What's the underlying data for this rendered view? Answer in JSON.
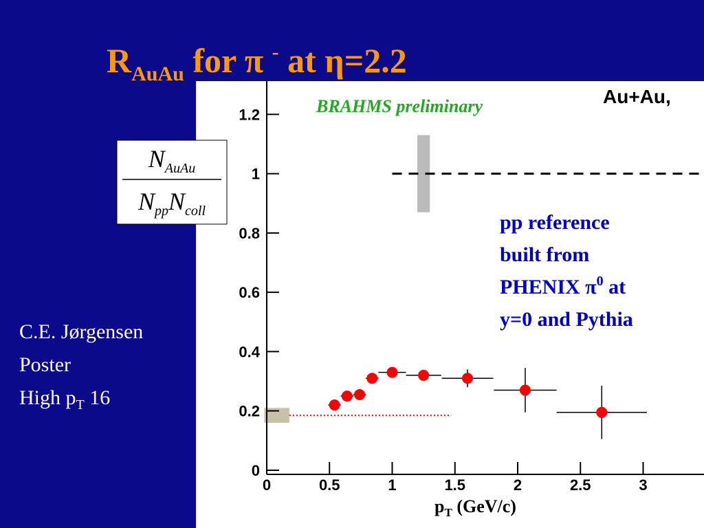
{
  "slide": {
    "title": {
      "main": "R",
      "sub": "AuAu",
      "mid": " for π ",
      "sup": "-",
      "end": " at η=2.2"
    },
    "formula": {
      "num": "N",
      "num_sub": "AuAu",
      "den1": "N",
      "den1_sub": "pp",
      "den2": "N",
      "den2_sub": "coll"
    },
    "notes": {
      "line1": "C.E. Jørgensen",
      "line2": "Poster",
      "line3_main": "High p",
      "line3_sub": "T",
      "line3_end": " 16"
    },
    "pp_text": {
      "line1": "pp reference",
      "line2": "built from",
      "line3_main": "PHENIX π",
      "line3_sup": "0",
      "line3_end": " at",
      "line4": "y=0 and Pythia"
    }
  },
  "chart_data": {
    "type": "scatter",
    "annotations": [
      "BRAHMS preliminary",
      "Au+Au,"
    ],
    "x_label": {
      "main": "p",
      "sub": "T",
      "end": " (GeV/c)"
    },
    "xlim": [
      0,
      3.485
    ],
    "ylim": [
      -0.014,
      1.312
    ],
    "xticks": [
      0,
      0.5,
      1,
      1.5,
      2,
      2.5,
      3
    ],
    "yticks": [
      0,
      0.2,
      0.4,
      0.6,
      0.8,
      1,
      1.2
    ],
    "series": [
      {
        "color": "#ff0000",
        "x": [
          0.54,
          0.64,
          0.74,
          0.84,
          1.0,
          1.25,
          1.6,
          2.06,
          2.67
        ],
        "values": [
          0.22,
          0.25,
          0.255,
          0.31,
          0.33,
          0.32,
          0.31,
          0.27,
          0.195
        ],
        "xerr": [
          0.05,
          0.05,
          0.05,
          0.05,
          0.11,
          0.14,
          0.205,
          0.25,
          0.36
        ],
        "yerr": [
          0.01,
          0.01,
          0.01,
          0.01,
          0.01,
          0.01,
          0.03,
          0.075,
          0.09
        ]
      }
    ],
    "reference_line": {
      "y": 1,
      "x_start": 1.0,
      "color": "#000000"
    },
    "syst_band": {
      "x": [
        1.2,
        1.3
      ],
      "y": [
        0.87,
        1.13
      ],
      "color": "#bbbbbb"
    },
    "norm_box": {
      "x": [
        -0.02,
        0.18
      ],
      "y": [
        0.16,
        0.21
      ],
      "color": "#c8c0a8"
    },
    "pp_line": {
      "y": 0.185,
      "x": [
        0.18,
        1.47
      ],
      "color": "#ff0000"
    }
  }
}
